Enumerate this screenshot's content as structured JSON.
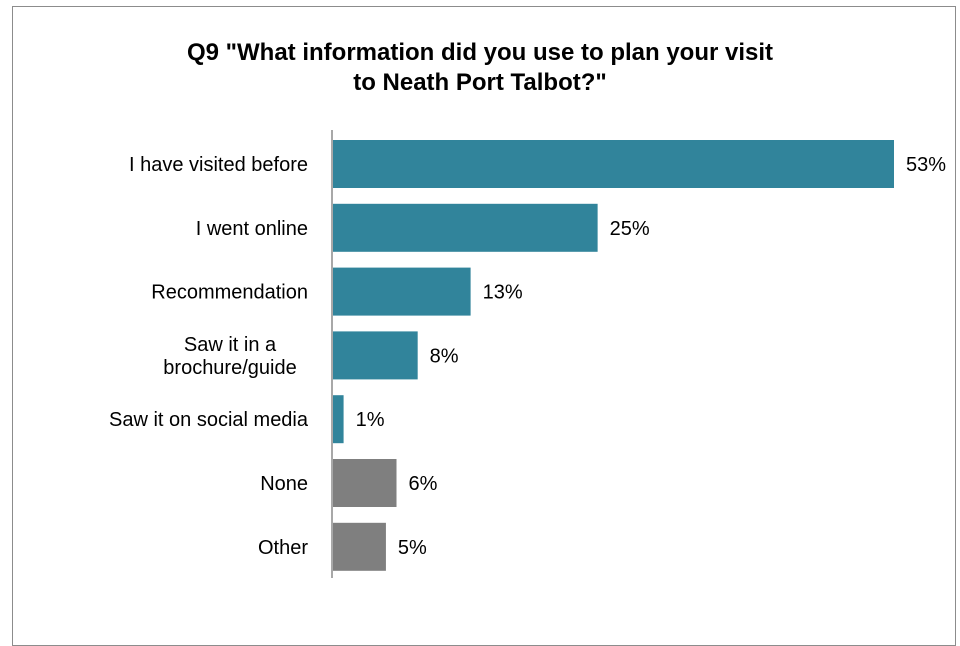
{
  "chart_data": {
    "type": "bar",
    "orientation": "horizontal",
    "title_lines": [
      "Q9 \"What information did you use to plan your visit",
      "to Neath Port Talbot?\""
    ],
    "categories": [
      [
        "I have visited before"
      ],
      [
        "I went online"
      ],
      [
        "Recommendation"
      ],
      [
        "Saw it in a",
        "brochure/guide"
      ],
      [
        "Saw it on social media"
      ],
      [
        "None"
      ],
      [
        "Other"
      ]
    ],
    "values": [
      53,
      25,
      13,
      8,
      1,
      6,
      5
    ],
    "value_labels": [
      "53%",
      "25%",
      "13%",
      "8%",
      "1%",
      "6%",
      "5%"
    ],
    "bar_colors": [
      "#31849b",
      "#31849b",
      "#31849b",
      "#31849b",
      "#31849b",
      "#7f7f7f",
      "#7f7f7f"
    ],
    "unit": "%",
    "xlim": [
      0,
      53
    ],
    "grid": false,
    "legend": "none"
  }
}
